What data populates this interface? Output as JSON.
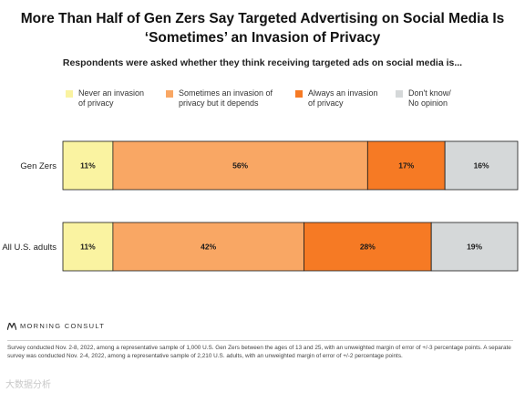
{
  "title_line1": "More Than Half of Gen Zers Say Targeted Advertising on Social Media Is",
  "title_line2": "‘Sometimes’ an Invasion of Privacy",
  "subtitle": "Respondents were asked whether they think receiving targeted ads on social media is...",
  "brand": "MORNING CONSULT",
  "footnote": "Survey conducted Nov. 2-8, 2022, among a representative sample of 1,000 U.S. Gen Zers between the ages of 13 and 25, with an unweighted margin of error of +/-3 percentage points. A separate survey was conducted Nov. 2-4, 2022, among a representative sample of 2,210 U.S. adults, with an unweighted margin of error of +/-2 percentage points.",
  "watermark": "大数据分析",
  "chart_data": {
    "type": "bar",
    "orientation": "horizontal",
    "stacked": true,
    "categories": [
      "Gen Zers",
      "All U.S. adults"
    ],
    "series": [
      {
        "name": "Never an invasion of privacy",
        "legend_lines": [
          "Never an invasion",
          "of privacy"
        ],
        "color": "#faf3a1",
        "values": [
          11,
          11
        ],
        "labels": [
          "11%",
          "11%"
        ]
      },
      {
        "name": "Sometimes an invasion of privacy but it depends",
        "legend_lines": [
          "Sometimes an invasion of",
          "privacy but it depends"
        ],
        "color": "#f9a764",
        "values": [
          56,
          42
        ],
        "labels": [
          "56%",
          "42%"
        ]
      },
      {
        "name": "Always an invasion of privacy",
        "legend_lines": [
          "Always an invasion",
          "of privacy"
        ],
        "color": "#f67a24",
        "values": [
          17,
          28
        ],
        "labels": [
          "17%",
          "28%"
        ]
      },
      {
        "name": "Don't know/ No opinion",
        "legend_lines": [
          "Don't know/",
          "No opinion"
        ],
        "color": "#d5d8d9",
        "values": [
          16,
          19
        ],
        "labels": [
          "16%",
          "19%"
        ]
      }
    ],
    "xlim": [
      0,
      100
    ],
    "legend_position": "top",
    "grid": false
  }
}
